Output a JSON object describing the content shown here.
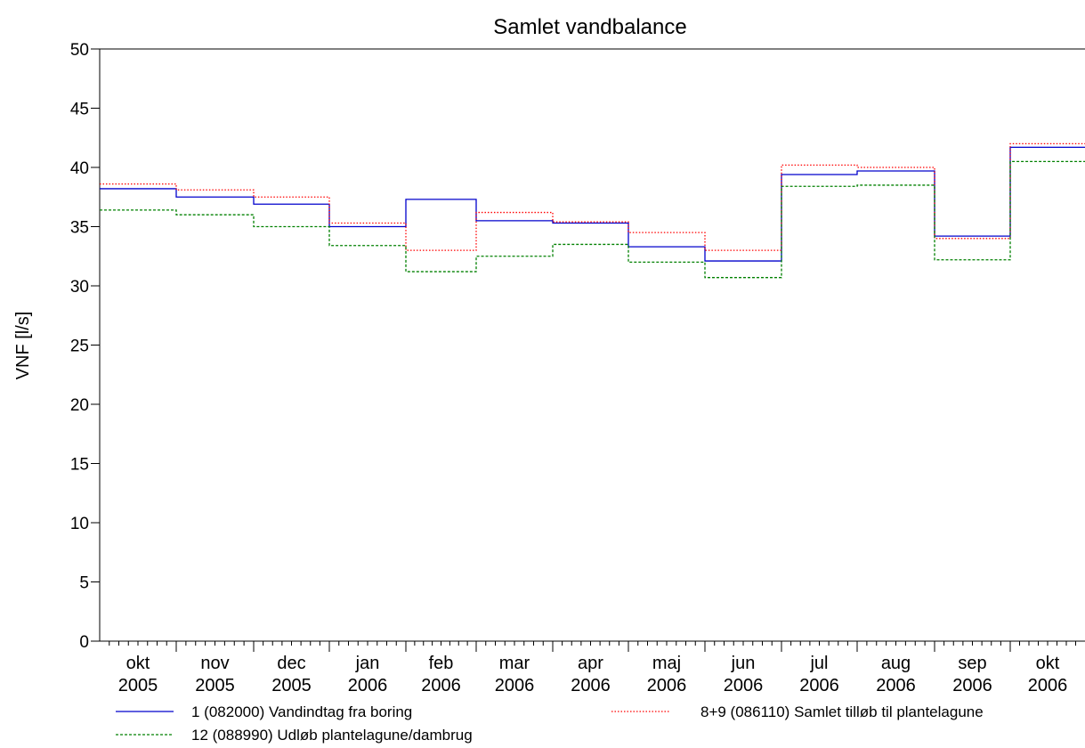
{
  "chart_data": {
    "type": "line",
    "title": "Samlet vandbalance",
    "ylabel": "VNF [l/s]",
    "xlabel": "",
    "ylim": [
      0,
      50
    ],
    "yticks": [
      0,
      5,
      10,
      15,
      20,
      25,
      30,
      35,
      40,
      45,
      50
    ],
    "step": true,
    "grid": false,
    "legend_position": "bottom",
    "months": [
      {
        "month": "okt",
        "year": "2005"
      },
      {
        "month": "nov",
        "year": "2005"
      },
      {
        "month": "dec",
        "year": "2005"
      },
      {
        "month": "jan",
        "year": "2006"
      },
      {
        "month": "feb",
        "year": "2006"
      },
      {
        "month": "mar",
        "year": "2006"
      },
      {
        "month": "apr",
        "year": "2006"
      },
      {
        "month": "maj",
        "year": "2006"
      },
      {
        "month": "jun",
        "year": "2006"
      },
      {
        "month": "jul",
        "year": "2006"
      },
      {
        "month": "aug",
        "year": "2006"
      },
      {
        "month": "sep",
        "year": "2006"
      },
      {
        "month": "okt",
        "year": "2006"
      }
    ],
    "series": [
      {
        "name": "1 (082000) Vandindtag fra boring",
        "color": "#0000cc",
        "dash": "solid",
        "values": [
          38.2,
          37.5,
          36.9,
          35.0,
          37.3,
          35.5,
          35.3,
          33.3,
          32.1,
          39.4,
          39.7,
          34.2,
          41.7
        ]
      },
      {
        "name": "8+9 (086110) Samlet tilløb til plantelagune",
        "color": "#ff0000",
        "dash": "dotted",
        "values": [
          38.6,
          38.1,
          37.5,
          35.3,
          33.0,
          36.2,
          35.4,
          34.5,
          33.0,
          40.2,
          40.0,
          34.0,
          42.0
        ]
      },
      {
        "name": "12 (088990) Udløb plantelagune/dambrug",
        "color": "#008000",
        "dash": "dashed",
        "values": [
          36.4,
          36.0,
          35.0,
          33.4,
          31.2,
          32.5,
          33.5,
          32.0,
          30.7,
          38.4,
          38.5,
          32.2,
          40.5
        ]
      }
    ]
  }
}
